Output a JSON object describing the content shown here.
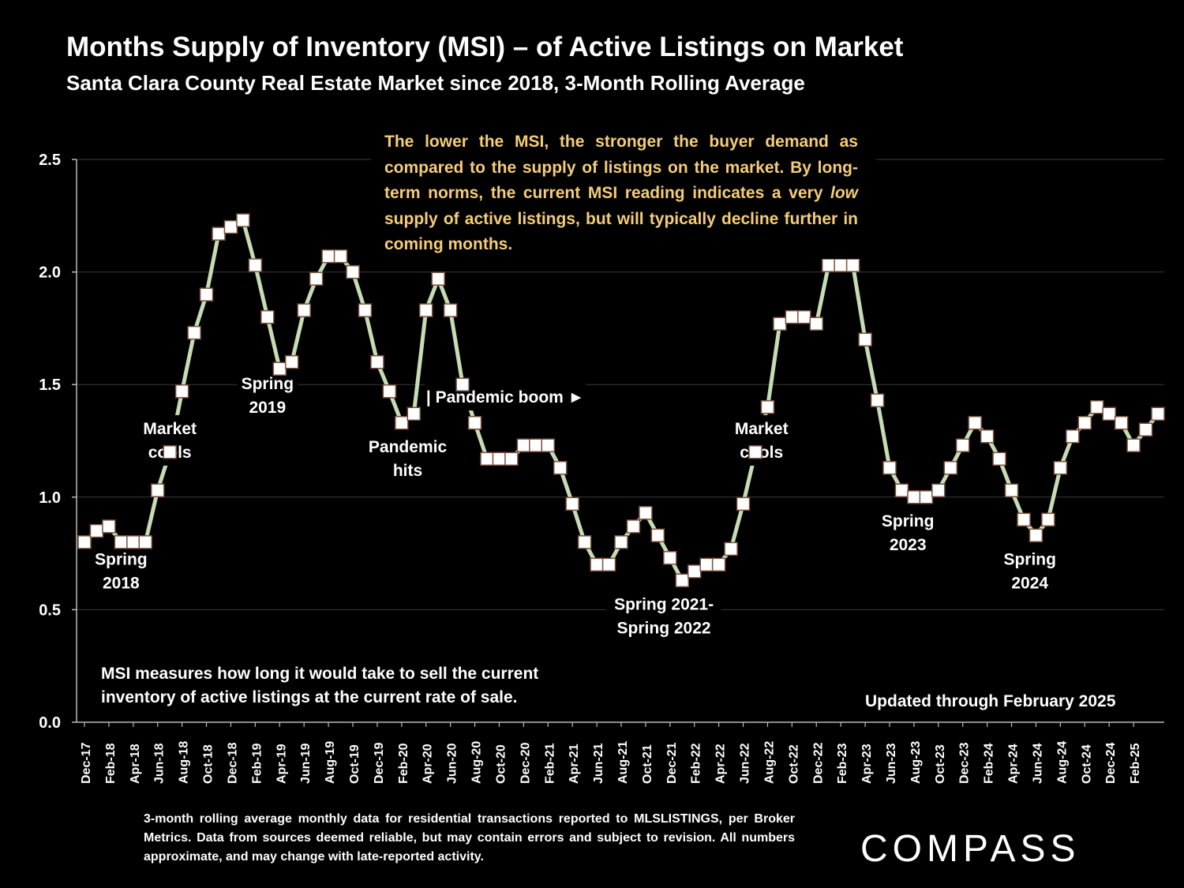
{
  "header": {
    "title": "Months Supply of Inventory (MSI) – of Active Listings on Market",
    "subtitle": "Santa Clara County Real Estate Market since 2018, 3-Month Rolling Average"
  },
  "notes": {
    "main_before": "The lower the MSI, the stronger the buyer demand as compared to the supply of listings on the market. By long-term norms, the current MSI reading indicates a very ",
    "main_emph": "low",
    "main_after": " supply of active listings, but will typically decline further in coming months.",
    "definition": "MSI measures how long it would take to sell the current inventory of active listings at the current rate of sale.",
    "updated": "Updated through February 2025",
    "footnote": "3-month rolling average monthly data for residential transactions reported to MLSLISTINGS, per Broker Metrics. Data from sources deemed reliable, but may contain errors and subject to revision. All numbers approximate, and may change with late-reported activity."
  },
  "brand": {
    "logo_text": "COMPASS"
  },
  "colors": {
    "background": "#000000",
    "line": "#c6dcb4",
    "marker_fill": "#ffffff",
    "marker_edge": "#7a4f3a",
    "note_text": "#f5cd78",
    "gridline": "#3a3a3a"
  },
  "chart_data": {
    "type": "line",
    "ylim": [
      0,
      2.5
    ],
    "yticks": [
      "0.0",
      "0.5",
      "1.0",
      "1.5",
      "2.0",
      "2.5"
    ],
    "xtick_labels": [
      "Dec-17",
      "Feb-18",
      "Apr-18",
      "Jun-18",
      "Aug-18",
      "Oct-18",
      "Dec-18",
      "Feb-19",
      "Apr-19",
      "Jun-19",
      "Aug-19",
      "Oct-19",
      "Dec-19",
      "Feb-20",
      "Apr-20",
      "Jun-20",
      "Aug-20",
      "Oct-20",
      "Dec-20",
      "Feb-21",
      "Apr-21",
      "Jun-21",
      "Aug-21",
      "Oct-21",
      "Dec-21",
      "Feb-22",
      "Apr-22",
      "Jun-22",
      "Aug-22",
      "Oct-22",
      "Dec-22",
      "Feb-23",
      "Apr-23",
      "Jun-23",
      "Aug-23",
      "Oct-23",
      "Dec-23",
      "Feb-24",
      "Apr-24",
      "Jun-24",
      "Aug-24",
      "Oct-24",
      "Dec-24",
      "Feb-25"
    ],
    "x_start": "Dec-17",
    "x_end": "Feb-25",
    "series": [
      {
        "values": [
          0.8,
          0.85,
          0.87,
          0.8,
          0.8,
          0.8,
          1.03,
          1.2,
          1.47,
          1.73,
          1.9,
          2.17,
          2.2,
          2.23,
          2.03,
          1.8,
          1.57,
          1.6,
          1.83,
          1.97,
          2.07,
          2.07,
          2.0,
          1.83,
          1.6,
          1.47,
          1.33,
          1.37,
          1.83,
          1.97,
          1.83,
          1.5,
          1.33,
          1.17,
          1.17,
          1.17,
          1.23,
          1.23,
          1.23,
          1.13,
          0.97,
          0.8,
          0.7,
          0.7,
          0.8,
          0.87,
          0.93,
          0.83,
          0.73,
          0.63,
          0.67,
          0.7,
          0.7,
          0.77,
          0.97,
          1.2,
          1.4,
          1.77,
          1.8,
          1.8,
          1.77,
          2.03,
          2.03,
          2.03,
          1.7,
          1.43,
          1.13,
          1.03,
          1.0,
          1.0,
          1.03,
          1.13,
          1.23,
          1.33,
          1.27,
          1.17,
          1.03,
          0.9,
          0.83,
          0.9,
          1.13,
          1.27,
          1.33,
          1.4,
          1.37,
          1.33,
          1.23,
          1.3,
          1.37
        ]
      }
    ],
    "annotations": [
      {
        "text": [
          "Spring",
          "2018"
        ],
        "x_index": 3,
        "y_value": 0.7
      },
      {
        "text": [
          "Market",
          "cools"
        ],
        "x_index": 7,
        "y_value": 1.28
      },
      {
        "text": [
          "Spring",
          "2019"
        ],
        "x_index": 15,
        "y_value": 1.48
      },
      {
        "text": [
          "Pandemic",
          "hits"
        ],
        "x_index": 26.5,
        "y_value": 1.2
      },
      {
        "text": [
          "| Pandemic boom ►"
        ],
        "x_index": 34.5,
        "y_value": 1.42
      },
      {
        "text": [
          "Spring 2021-",
          "Spring 2022"
        ],
        "x_index": 47.5,
        "y_value": 0.5
      },
      {
        "text": [
          "Market",
          "cools"
        ],
        "x_index": 55.5,
        "y_value": 1.28
      },
      {
        "text": [
          "Spring",
          "2023"
        ],
        "x_index": 67.5,
        "y_value": 0.87
      },
      {
        "text": [
          "Spring",
          "2024"
        ],
        "x_index": 77.5,
        "y_value": 0.7
      }
    ]
  }
}
